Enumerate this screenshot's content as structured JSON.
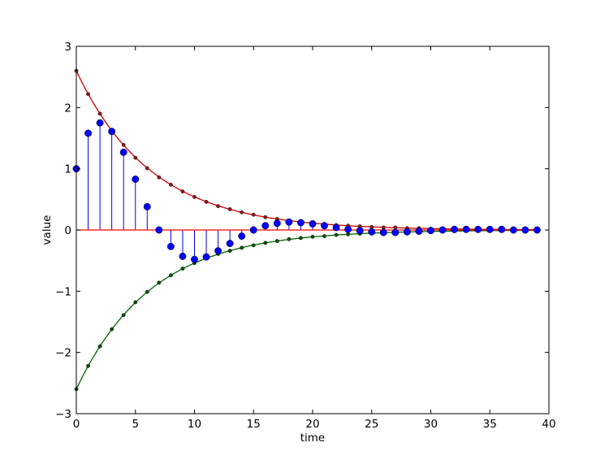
{
  "chart_data": {
    "type": "stem",
    "title": "",
    "xlabel": "time",
    "ylabel": "value",
    "xlim": [
      0,
      40
    ],
    "ylim": [
      -3,
      3
    ],
    "xticks": [
      0,
      5,
      10,
      15,
      20,
      25,
      30,
      35,
      40
    ],
    "yticks": [
      -3,
      -2,
      -1,
      0,
      1,
      2,
      3
    ],
    "ytick_labels": [
      "−3",
      "−2",
      "−1",
      "0",
      "1",
      "2",
      "3"
    ],
    "grid": false,
    "colors": {
      "stem": "#0000ff",
      "baseline": "#ff0000",
      "upper_envelope": "#cc0000",
      "lower_envelope": "#006600"
    },
    "stems": {
      "x": [
        0,
        1,
        2,
        3,
        4,
        5,
        6,
        7,
        8,
        9,
        10,
        11,
        12,
        13,
        14,
        15,
        16,
        17,
        18,
        19,
        20,
        21,
        22,
        23,
        24,
        25,
        26,
        27,
        28,
        29,
        30,
        31,
        32,
        33,
        34,
        35,
        36,
        37,
        38,
        39
      ],
      "y": [
        1.0,
        1.58,
        1.75,
        1.61,
        1.27,
        0.83,
        0.38,
        0.0,
        -0.27,
        -0.43,
        -0.48,
        -0.44,
        -0.34,
        -0.22,
        -0.1,
        0.0,
        0.07,
        0.11,
        0.13,
        0.12,
        0.1,
        0.07,
        0.04,
        0.01,
        -0.01,
        -0.03,
        -0.04,
        -0.04,
        -0.03,
        -0.02,
        -0.01,
        0.0,
        0.01,
        0.01,
        0.01,
        0.01,
        0.01,
        0.0,
        0.0,
        0.0
      ]
    },
    "envelope": {
      "amplitude": 2.6,
      "decay_rate": 0.157,
      "x": [
        0,
        1,
        2,
        3,
        4,
        5,
        6,
        7,
        8,
        9,
        10,
        11,
        12,
        13,
        14,
        15,
        16,
        17,
        18,
        19,
        20,
        21,
        22,
        23,
        24,
        25,
        26,
        27,
        28,
        29,
        30,
        31,
        32,
        33,
        34,
        35,
        36,
        37,
        38,
        39
      ],
      "upper": [
        2.6,
        2.22,
        1.9,
        1.62,
        1.39,
        1.18,
        1.01,
        0.86,
        0.74,
        0.63,
        0.54,
        0.46,
        0.39,
        0.34,
        0.29,
        0.25,
        0.21,
        0.18,
        0.15,
        0.13,
        0.11,
        0.1,
        0.08,
        0.07,
        0.06,
        0.05,
        0.04,
        0.04,
        0.03,
        0.03,
        0.02,
        0.02,
        0.02,
        0.01,
        0.01,
        0.01,
        0.01,
        0.01,
        0.01,
        0.01
      ]
    }
  }
}
